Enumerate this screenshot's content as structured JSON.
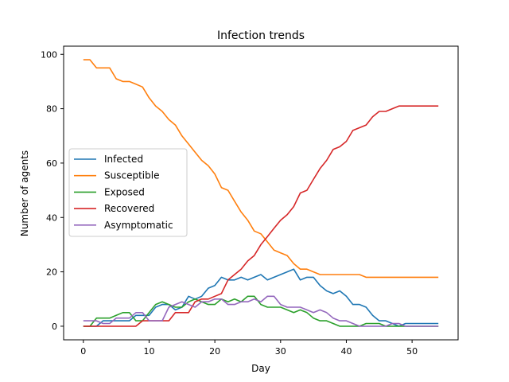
{
  "chart_data": {
    "type": "line",
    "title": "Infection trends",
    "xlabel": "Day",
    "ylabel": "Number of agents",
    "xlim": [
      -3,
      57
    ],
    "ylim": [
      -5,
      103
    ],
    "xticks": [
      0,
      10,
      20,
      30,
      40,
      50
    ],
    "yticks": [
      0,
      20,
      40,
      60,
      80,
      100
    ],
    "grid": false,
    "legend_position": "center-left",
    "x": [
      0,
      1,
      2,
      3,
      4,
      5,
      6,
      7,
      8,
      9,
      10,
      11,
      12,
      13,
      14,
      15,
      16,
      17,
      18,
      19,
      20,
      21,
      22,
      23,
      24,
      25,
      26,
      27,
      28,
      29,
      30,
      31,
      32,
      33,
      34,
      35,
      36,
      37,
      38,
      39,
      40,
      41,
      42,
      43,
      44,
      45,
      46,
      47,
      48,
      49,
      50,
      51,
      52,
      53,
      54
    ],
    "series": [
      {
        "name": "Infected",
        "color": "#1f77b4",
        "values": [
          0,
          0,
          0,
          2,
          2,
          2,
          2,
          2,
          4,
          4,
          4,
          7,
          8,
          8,
          6,
          7,
          11,
          10,
          11,
          14,
          15,
          18,
          17,
          17,
          18,
          17,
          18,
          19,
          17,
          18,
          19,
          20,
          21,
          17,
          18,
          18,
          15,
          13,
          12,
          13,
          11,
          8,
          8,
          7,
          4,
          2,
          2,
          1,
          0,
          1,
          1,
          1,
          1,
          1,
          1
        ]
      },
      {
        "name": "Susceptible",
        "color": "#ff7f0e",
        "values": [
          98,
          98,
          95,
          95,
          95,
          91,
          90,
          90,
          89,
          88,
          84,
          81,
          79,
          76,
          74,
          70,
          67,
          64,
          61,
          59,
          56,
          51,
          50,
          46,
          42,
          39,
          35,
          34,
          31,
          28,
          27,
          26,
          23,
          21,
          21,
          20,
          19,
          19,
          19,
          19,
          19,
          19,
          19,
          18,
          18,
          18,
          18,
          18,
          18,
          18,
          18,
          18,
          18,
          18,
          18
        ]
      },
      {
        "name": "Exposed",
        "color": "#2ca02c",
        "values": [
          0,
          0,
          3,
          3,
          3,
          4,
          5,
          5,
          2,
          2,
          5,
          8,
          9,
          8,
          7,
          7,
          9,
          10,
          9,
          8,
          8,
          10,
          9,
          10,
          9,
          11,
          11,
          8,
          7,
          7,
          7,
          6,
          5,
          6,
          5,
          3,
          2,
          2,
          1,
          0,
          0,
          0,
          0,
          1,
          1,
          1,
          0,
          0,
          0,
          0,
          0,
          0,
          0,
          0,
          0
        ]
      },
      {
        "name": "Recovered",
        "color": "#d62728",
        "values": [
          0,
          0,
          0,
          0,
          0,
          0,
          0,
          0,
          0,
          2,
          2,
          2,
          2,
          2,
          5,
          5,
          5,
          9,
          10,
          10,
          11,
          12,
          17,
          19,
          21,
          24,
          26,
          30,
          33,
          36,
          39,
          41,
          44,
          49,
          50,
          54,
          58,
          61,
          65,
          66,
          68,
          72,
          73,
          74,
          77,
          79,
          79,
          80,
          81,
          81,
          81,
          81,
          81,
          81,
          81
        ]
      },
      {
        "name": "Asymptomatic",
        "color": "#9467bd",
        "values": [
          2,
          2,
          2,
          1,
          1,
          3,
          3,
          3,
          5,
          5,
          2,
          2,
          2,
          7,
          8,
          9,
          8,
          7,
          9,
          9,
          10,
          10,
          8,
          8,
          9,
          9,
          10,
          9,
          11,
          11,
          8,
          7,
          7,
          7,
          6,
          5,
          6,
          5,
          3,
          2,
          2,
          1,
          0,
          0,
          0,
          0,
          0,
          1,
          1,
          0,
          0,
          0,
          0,
          0,
          0
        ]
      }
    ]
  }
}
